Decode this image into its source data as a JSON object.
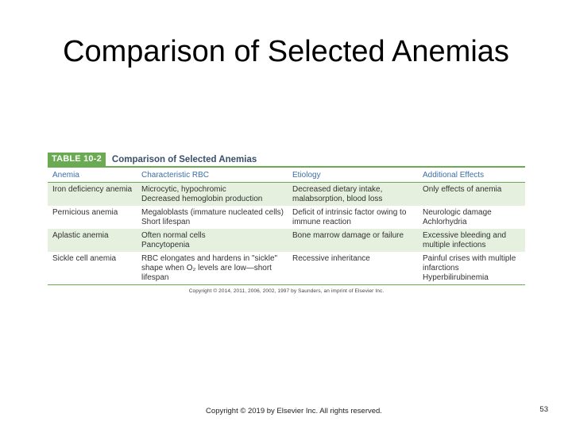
{
  "slide": {
    "title": "Comparison of Selected Anemias",
    "footer": "Copyright © 2019 by Elsevier Inc. All rights reserved.",
    "page_number": "53"
  },
  "table": {
    "tag": "TABLE 10-2",
    "caption": "Comparison of Selected Anemias",
    "headers": [
      "Anemia",
      "Characteristic RBC",
      "Etiology",
      "Additional Effects"
    ],
    "rows": [
      {
        "anemia": [
          "Iron deficiency anemia"
        ],
        "rbc": [
          "Microcytic, hypochromic",
          "Decreased hemoglobin production"
        ],
        "etiology": [
          "Decreased dietary intake,",
          "malabsorption, blood loss"
        ],
        "effects": [
          "Only effects of anemia"
        ]
      },
      {
        "anemia": [
          "Pernicious anemia"
        ],
        "rbc": [
          "Megaloblasts (immature nucleated cells)",
          "Short lifespan"
        ],
        "etiology": [
          "Deficit of intrinsic factor owing to",
          "immune reaction"
        ],
        "effects": [
          "Neurologic damage",
          "Achlorhydria"
        ]
      },
      {
        "anemia": [
          "Aplastic anemia"
        ],
        "rbc": [
          "Often normal cells",
          "Pancytopenia"
        ],
        "etiology": [
          "Bone marrow damage or failure"
        ],
        "effects": [
          "Excessive bleeding and",
          "multiple infections"
        ]
      },
      {
        "anemia": [
          "Sickle cell anemia"
        ],
        "rbc": [
          "RBC elongates and hardens in \"sickle\"",
          "shape when O₂ levels are low—short",
          "lifespan"
        ],
        "etiology": [
          "Recessive inheritance"
        ],
        "effects": [
          "Painful crises with multiple",
          "infarctions",
          "Hyperbilirubinemia"
        ]
      }
    ],
    "copyright": "Copyright © 2014, 2011, 2006, 2002, 1997 by Saunders, an imprint of Elsevier Inc."
  }
}
